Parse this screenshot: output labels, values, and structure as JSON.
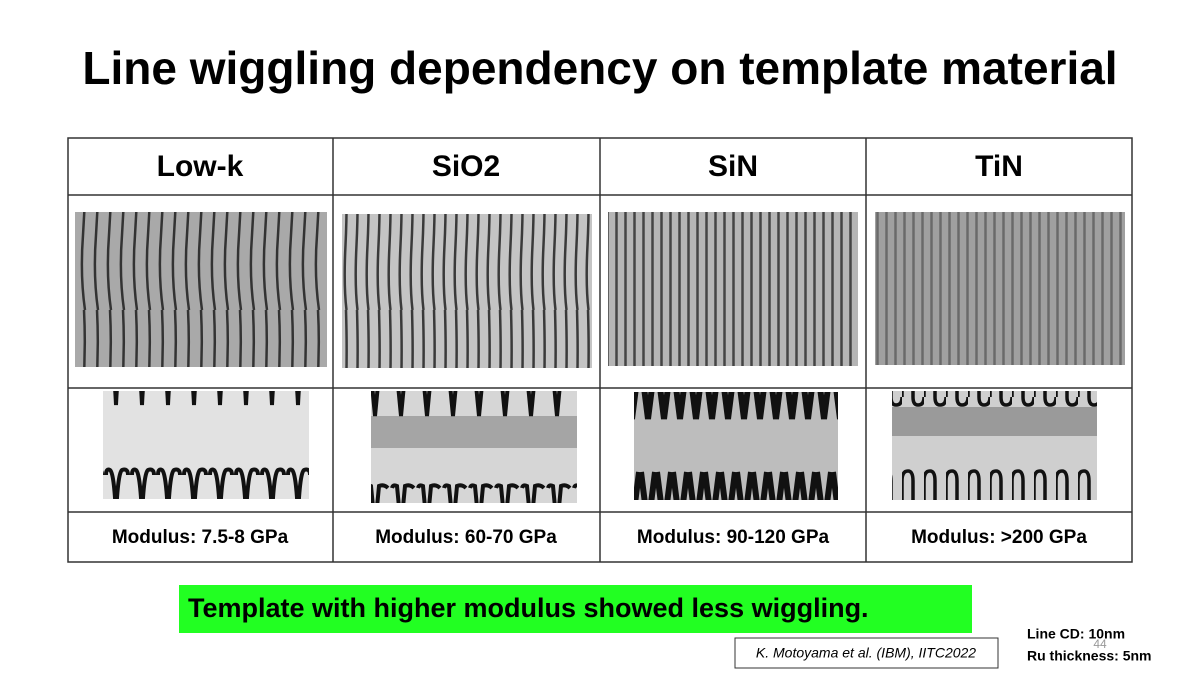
{
  "title": "Line wiggling dependency on template material",
  "table": {
    "headers": [
      "Low-k",
      "SiO2",
      "SiN",
      "TiN"
    ],
    "modulus": [
      "Modulus: 7.5-8 GPa",
      "Modulus: 60-70 GPa",
      "Modulus: 90-120 GPa",
      "Modulus: >200 GPa"
    ]
  },
  "conclusion": "Template with higher modulus showed less wiggling.",
  "citation": "K. Motoyama et al. (IBM), IITC2022",
  "notes": [
    "Line CD: 10nm",
    "Ru thickness: 5nm"
  ],
  "page_number": "44"
}
